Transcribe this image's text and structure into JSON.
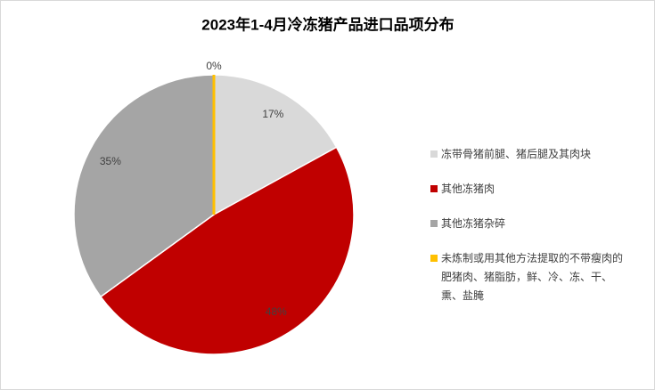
{
  "chart_data": {
    "type": "pie",
    "title": "2023年1-4月冷冻猪产品进口品项分布",
    "categories": [
      "冻带骨猪前腿、猪后腿及其肉块",
      "其他冻猪肉",
      "其他冻猪杂碎",
      "未炼制或用其他方法提取的不带瘦肉的肥猪肉、猪脂肪，鲜、冷、冻、干、熏、盐腌"
    ],
    "values": [
      17,
      48,
      35,
      0
    ],
    "value_labels": [
      "17%",
      "48%",
      "35%",
      "0%"
    ],
    "colors": [
      "#d9d9d9",
      "#c00000",
      "#a5a5a5",
      "#ffc000"
    ],
    "legend": "right"
  }
}
